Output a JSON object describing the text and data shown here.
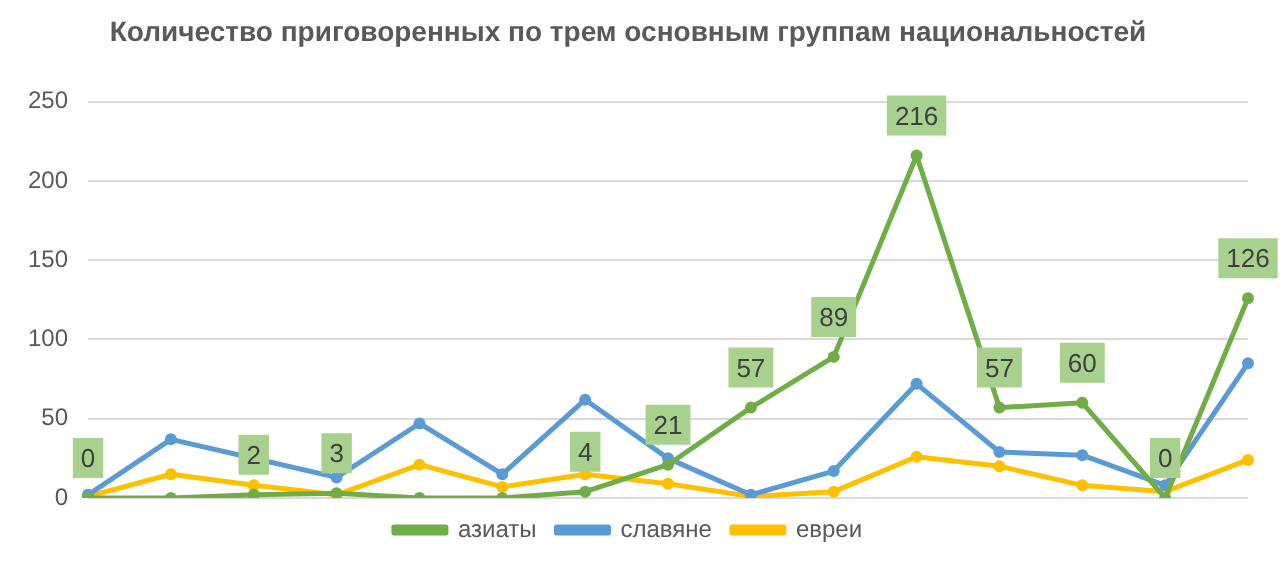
{
  "chart_data": {
    "type": "line",
    "title": "Количество приговоренных по трем основным группам национальностей",
    "categories": [
      null,
      null,
      null,
      null,
      null,
      null,
      null,
      null,
      null,
      null,
      null,
      null,
      null,
      null,
      null
    ],
    "series": [
      {
        "name": "азиаты",
        "color": "#70ad47",
        "values": [
          0,
          0,
          2,
          3,
          0,
          0,
          4,
          21,
          57,
          89,
          216,
          57,
          60,
          0,
          126
        ],
        "value_labels": [
          "0",
          null,
          "2",
          "3",
          null,
          null,
          "4",
          "21",
          "57",
          "89",
          "216",
          "57",
          "60",
          "0",
          "126"
        ]
      },
      {
        "name": "славяне",
        "color": "#5b9bd5",
        "values": [
          2,
          37,
          null,
          13,
          47,
          15,
          62,
          25,
          2,
          17,
          72,
          29,
          27,
          8,
          85
        ]
      },
      {
        "name": "евреи",
        "color": "#ffc000",
        "values": [
          1,
          15,
          8,
          2,
          21,
          7,
          15,
          9,
          1,
          4,
          26,
          20,
          8,
          4,
          24
        ]
      }
    ],
    "ylim": [
      0,
      250
    ],
    "yticks": [
      0,
      50,
      100,
      150,
      200,
      250
    ],
    "grid": "y",
    "legend": "bottom",
    "marker": "circle",
    "line_style": "solid",
    "tick_labels": "y"
  }
}
